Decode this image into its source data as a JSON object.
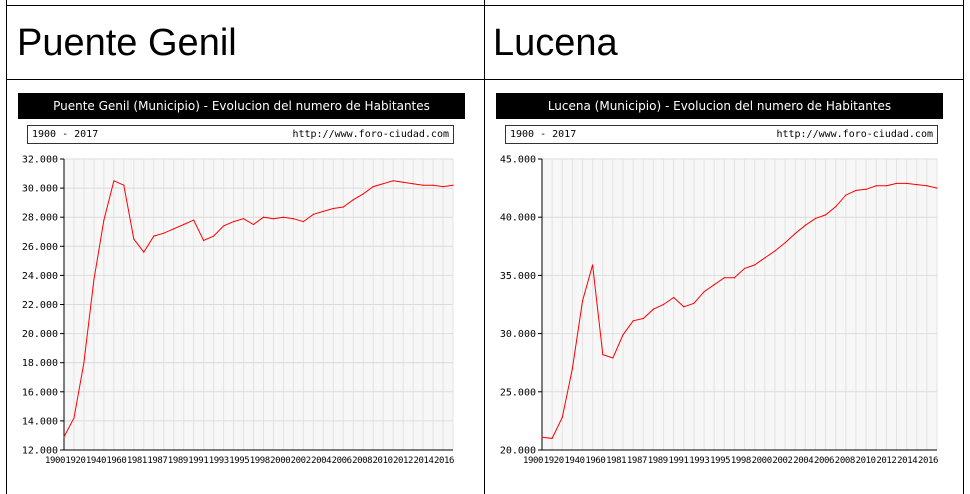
{
  "table": {
    "headers": [
      "Puente Genil",
      "Lucena"
    ]
  },
  "chart_data": [
    {
      "type": "line",
      "title": "Puente Genil (Municipio) - Evolucion del numero de Habitantes",
      "range_label": "1900 - 2017",
      "source_label": "http://www.foro-ciudad.com",
      "ylim": [
        12000,
        32000
      ],
      "yticks": [
        12000,
        14000,
        16000,
        18000,
        20000,
        22000,
        24000,
        26000,
        28000,
        30000,
        32000
      ],
      "ytick_labels": [
        "12.000",
        "14.000",
        "16.000",
        "18.000",
        "20.000",
        "22.000",
        "24.000",
        "26.000",
        "28.000",
        "30.000",
        "32.000"
      ],
      "xtick_labels": [
        "1900",
        "1920",
        "1940",
        "1960",
        "1981",
        "1987",
        "1989",
        "1991",
        "1993",
        "1995",
        "1998",
        "2000",
        "2002",
        "2004",
        "2006",
        "2008",
        "2010",
        "2012",
        "2014",
        "2016"
      ],
      "grid": true,
      "line_color": "#ff0000",
      "series": [
        {
          "values": [
            12900,
            14200,
            18000,
            23700,
            27800,
            30500,
            30200,
            26500,
            25600,
            26700,
            26900,
            27200,
            27500,
            27800,
            26400,
            26700,
            27400,
            27700,
            27900,
            27500,
            28000,
            27900,
            28000,
            27900,
            27700,
            28200,
            28400,
            28600,
            28700,
            29200,
            29600,
            30100,
            30300,
            30500,
            30400,
            30300,
            30200,
            30200,
            30100,
            30200
          ]
        }
      ]
    },
    {
      "type": "line",
      "title": "Lucena (Municipio) - Evolucion del numero de Habitantes",
      "range_label": "1900 - 2017",
      "source_label": "http://www.foro-ciudad.com",
      "ylim": [
        20000,
        45000
      ],
      "yticks": [
        20000,
        25000,
        30000,
        35000,
        40000,
        45000
      ],
      "ytick_labels": [
        "20.000",
        "25.000",
        "30.000",
        "35.000",
        "40.000",
        "45.000"
      ],
      "xtick_labels": [
        "1900",
        "1920",
        "1940",
        "1960",
        "1981",
        "1987",
        "1989",
        "1991",
        "1993",
        "1995",
        "1998",
        "2000",
        "2002",
        "2004",
        "2006",
        "2008",
        "2010",
        "2012",
        "2014",
        "2016"
      ],
      "grid": true,
      "line_color": "#ff0000",
      "series": [
        {
          "values": [
            21100,
            21000,
            22800,
            27000,
            32800,
            35900,
            28200,
            27900,
            29900,
            31100,
            31300,
            32100,
            32500,
            33100,
            32300,
            32600,
            33600,
            34200,
            34800,
            34800,
            35600,
            35900,
            36500,
            37100,
            37800,
            38600,
            39300,
            39900,
            40200,
            40900,
            41900,
            42300,
            42400,
            42700,
            42700,
            42900,
            42900,
            42800,
            42700,
            42500
          ]
        }
      ]
    }
  ]
}
